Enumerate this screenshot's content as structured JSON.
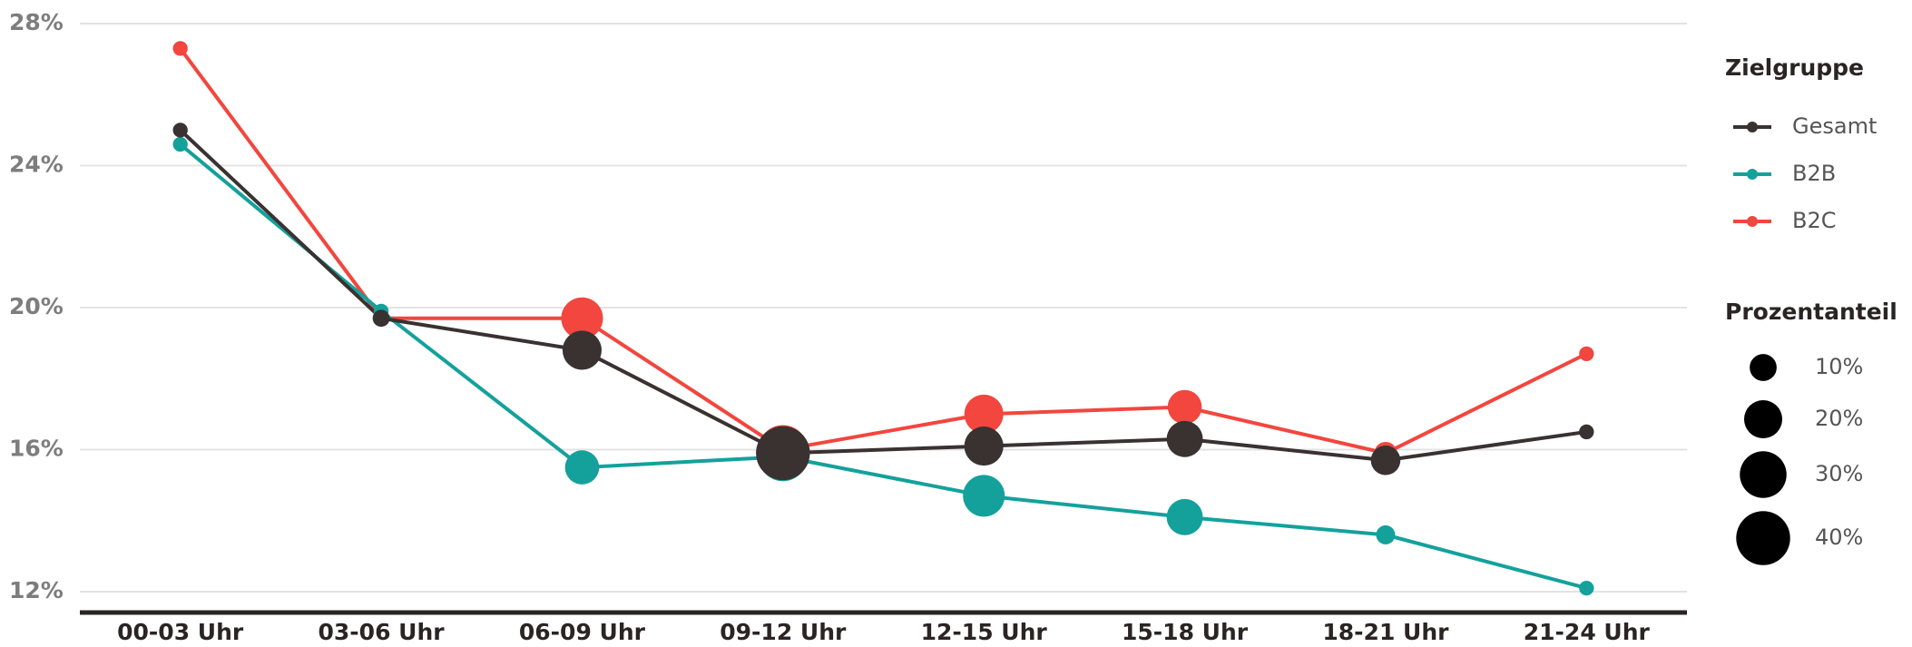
{
  "chart_data": {
    "type": "line",
    "categories": [
      "00-03 Uhr",
      "03-06 Uhr",
      "06-09 Uhr",
      "09-12 Uhr",
      "12-15 Uhr",
      "15-18 Uhr",
      "18-21 Uhr",
      "21-24 Uhr"
    ],
    "series": [
      {
        "name": "Gesamt",
        "color": "#3a3131",
        "values": [
          25.0,
          19.7,
          18.8,
          15.9,
          16.1,
          16.3,
          15.7,
          16.5
        ],
        "sizes": [
          3,
          4,
          21,
          40,
          21,
          18,
          12,
          3
        ]
      },
      {
        "name": "B2B",
        "color": "#14a19c",
        "values": [
          24.6,
          19.9,
          15.5,
          15.8,
          14.7,
          14.1,
          13.6,
          12.1
        ],
        "sizes": [
          3,
          3,
          16,
          33,
          24,
          18,
          5,
          3
        ]
      },
      {
        "name": "B2C",
        "color": "#f2463e",
        "values": [
          27.3,
          19.7,
          19.7,
          16.0,
          17.0,
          17.2,
          15.9,
          18.7
        ],
        "sizes": [
          3,
          3,
          24,
          33,
          21,
          16,
          7,
          3
        ]
      }
    ],
    "ylim": [
      12,
      28
    ],
    "yticks": [
      {
        "value": 12,
        "label": "12%"
      },
      {
        "value": 16,
        "label": "16%"
      },
      {
        "value": 20,
        "label": "20%"
      },
      {
        "value": 24,
        "label": "24%"
      },
      {
        "value": 28,
        "label": "28%"
      }
    ],
    "grid": true,
    "legend_title": "Zielgruppe",
    "size_legend_title": "Prozentanteil",
    "size_legend": [
      {
        "value": 10,
        "label": "10%"
      },
      {
        "value": 20,
        "label": "20%"
      },
      {
        "value": 30,
        "label": "30%"
      },
      {
        "value": 40,
        "label": "40%"
      }
    ],
    "legend_position": "right"
  }
}
